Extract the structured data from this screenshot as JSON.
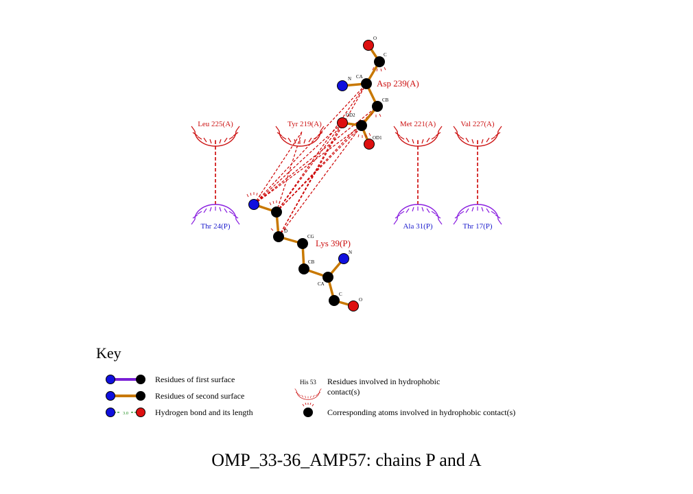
{
  "title": "OMP_33-36_AMP57: chains P and A",
  "colors": {
    "bond": "#c87800",
    "first_surface": "#7a1fd6",
    "carbon": "#000000",
    "nitrogen": "#1010dd",
    "oxygen": "#dd1010",
    "contact_line": "#cc0000",
    "chain_a_label": "#cc1010",
    "chain_p_label": "#1a1acc",
    "hbond": "#1a8a1a",
    "chain_a_arc": "#cc1010",
    "chain_p_arc": "#8a1fe0"
  },
  "residues": {
    "asp239": {
      "label": "Asp 239(A)",
      "atoms": {
        "o": "O",
        "c": "C",
        "n": "N",
        "ca": "CA",
        "cb": "CB",
        "od2": "OD2",
        "od1": "OD1"
      }
    },
    "lys39": {
      "label": "Lys 39(P)",
      "atoms": {
        "cg": "CG",
        "d": "D",
        "n": "N",
        "cb": "CB",
        "ca": "CA",
        "c": "C",
        "o": "O"
      }
    }
  },
  "hydrophobic": {
    "chain_a": [
      {
        "id": "leu225",
        "label": "Leu 225(A)"
      },
      {
        "id": "tyr219",
        "label": "Tyr 219(A)"
      },
      {
        "id": "met221",
        "label": "Met 221(A)"
      },
      {
        "id": "val227",
        "label": "Val 227(A)"
      }
    ],
    "chain_p": [
      {
        "id": "thr24",
        "label": "Thr 24(P)"
      },
      {
        "id": "ala31",
        "label": "Ala 31(P)"
      },
      {
        "id": "thr17",
        "label": "Thr 17(P)"
      }
    ]
  },
  "key": {
    "heading": "Key",
    "first_surface": "Residues of first surface",
    "second_surface": "Residues of second surface",
    "hbond": "Hydrogen bond and its length",
    "hbond_length": "3.0",
    "example_residue": "His 53",
    "hydrophobic_residues": "Residues involved in hydrophobic",
    "hydrophobic_residues_2": "contact(s)",
    "hydrophobic_atoms": "Corresponding atoms involved in hydrophobic contact(s)"
  }
}
